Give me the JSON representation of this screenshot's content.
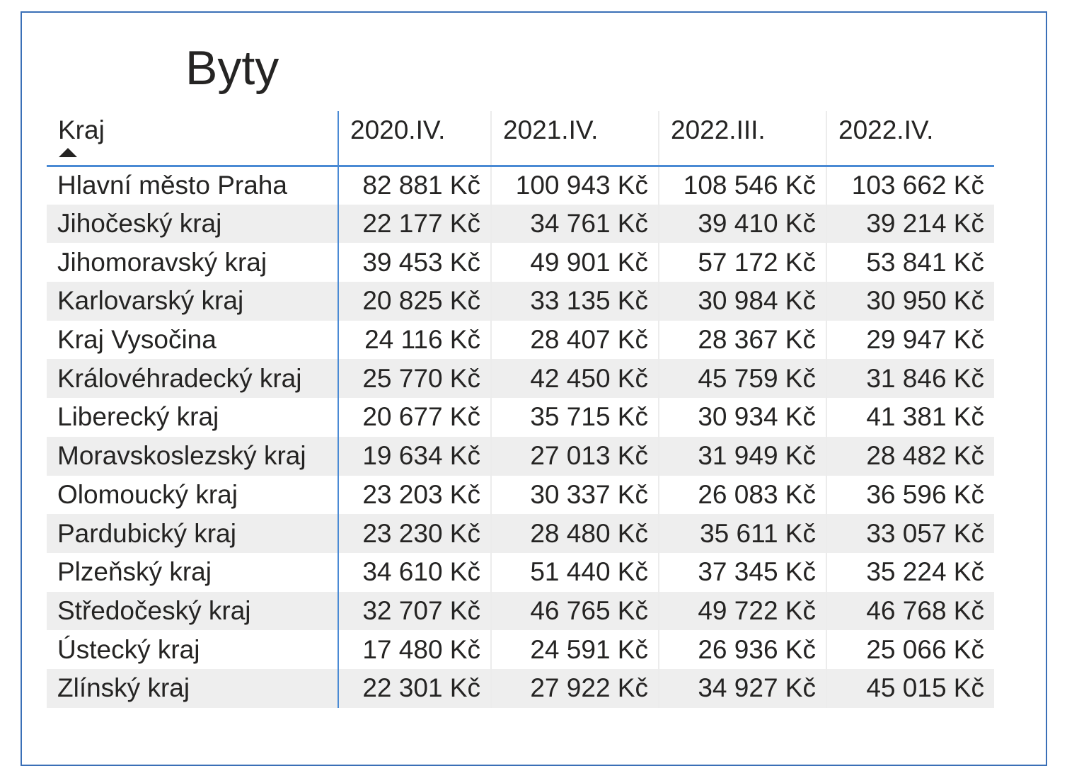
{
  "title": "Byty",
  "table": {
    "columns": [
      "Kraj",
      "2020.IV.",
      "2021.IV.",
      "2022.III.",
      "2022.IV."
    ],
    "sort_column": "Kraj",
    "sort_direction": "ascending",
    "rows": [
      [
        "Hlavní město Praha",
        "82 881 Kč",
        "100 943 Kč",
        "108 546 Kč",
        "103 662 Kč"
      ],
      [
        "Jihočeský kraj",
        "22 177 Kč",
        "34 761 Kč",
        "39 410 Kč",
        "39 214 Kč"
      ],
      [
        "Jihomoravský kraj",
        "39 453 Kč",
        "49 901 Kč",
        "57 172 Kč",
        "53 841 Kč"
      ],
      [
        "Karlovarský kraj",
        "20 825 Kč",
        "33 135 Kč",
        "30 984 Kč",
        "30 950 Kč"
      ],
      [
        "Kraj Vysočina",
        "24 116 Kč",
        "28 407 Kč",
        "28 367 Kč",
        "29 947 Kč"
      ],
      [
        "Královéhradecký kraj",
        "25 770 Kč",
        "42 450 Kč",
        "45 759 Kč",
        "31 846 Kč"
      ],
      [
        "Liberecký kraj",
        "20 677 Kč",
        "35 715 Kč",
        "30 934 Kč",
        "41 381 Kč"
      ],
      [
        "Moravskoslezský kraj",
        "19 634 Kč",
        "27 013 Kč",
        "31 949 Kč",
        "28 482 Kč"
      ],
      [
        "Olomoucký kraj",
        "23 203 Kč",
        "30 337 Kč",
        "26 083 Kč",
        "36 596 Kč"
      ],
      [
        "Pardubický kraj",
        "23 230 Kč",
        "28 480 Kč",
        "35 611 Kč",
        "33 057 Kč"
      ],
      [
        "Plzeňský kraj",
        "34 610 Kč",
        "51 440 Kč",
        "37 345 Kč",
        "35 224 Kč"
      ],
      [
        "Středočeský kraj",
        "32 707 Kč",
        "46 765 Kč",
        "49 722 Kč",
        "46 768 Kč"
      ],
      [
        "Ústecký kraj",
        "17 480 Kč",
        "24 591 Kč",
        "26 936 Kč",
        "25 066 Kč"
      ],
      [
        "Zlínský kraj",
        "22 301 Kč",
        "27 922 Kč",
        "34 927 Kč",
        "45 015 Kč"
      ]
    ]
  },
  "colors": {
    "frame_border": "#3a6fb7",
    "header_underline": "#4a8ad4",
    "row_stripe": "#eeeeee",
    "text": "#252423"
  },
  "icons": {
    "sort": "sort-ascending-icon"
  }
}
